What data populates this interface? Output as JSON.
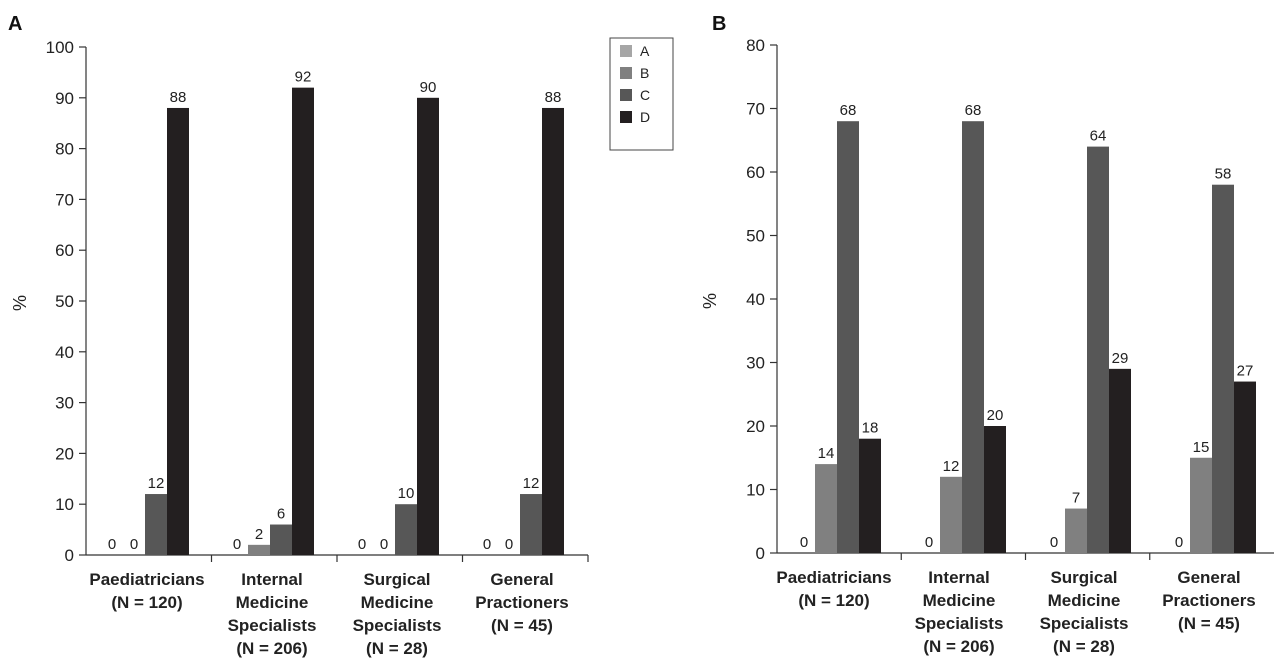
{
  "chart_data": [
    {
      "panel_label": "A",
      "type": "bar",
      "ylabel": "%",
      "ylim": [
        0,
        100
      ],
      "yticks": [
        0,
        10,
        20,
        30,
        40,
        50,
        60,
        70,
        80,
        90,
        100
      ],
      "categories": [
        [
          "Paediatricians",
          "(N = 120)"
        ],
        [
          "Internal",
          "Medicine",
          "Specialists",
          "(N = 206)"
        ],
        [
          "Surgical",
          "Medicine",
          "Specialists",
          "(N = 28)"
        ],
        [
          "General",
          "Practioners",
          "(N = 45)"
        ]
      ],
      "series": [
        {
          "name": "A",
          "color": "#a6a6a6",
          "values": [
            0,
            0,
            0,
            0
          ]
        },
        {
          "name": "B",
          "color": "#808080",
          "values": [
            0,
            2,
            0,
            0
          ]
        },
        {
          "name": "C",
          "color": "#575757",
          "values": [
            12,
            6,
            10,
            12
          ]
        },
        {
          "name": "D",
          "color": "#231f20",
          "values": [
            88,
            92,
            90,
            88
          ]
        }
      ],
      "legend": "top-right"
    },
    {
      "panel_label": "B",
      "type": "bar",
      "ylabel": "%",
      "ylim": [
        0,
        80
      ],
      "yticks": [
        0,
        10,
        20,
        30,
        40,
        50,
        60,
        70,
        80
      ],
      "categories": [
        [
          "Paediatricians",
          "(N = 120)"
        ],
        [
          "Internal",
          "Medicine",
          "Specialists",
          "(N = 206)"
        ],
        [
          "Surgical",
          "Medicine",
          "Specialists",
          "(N = 28)"
        ],
        [
          "General",
          "Practioners",
          "(N = 45)"
        ]
      ],
      "series": [
        {
          "name": "A",
          "color": "#a6a6a6",
          "values": [
            0,
            0,
            0,
            0
          ]
        },
        {
          "name": "B",
          "color": "#808080",
          "values": [
            14,
            12,
            7,
            15
          ]
        },
        {
          "name": "C",
          "color": "#575757",
          "values": [
            68,
            68,
            64,
            58
          ]
        },
        {
          "name": "D",
          "color": "#231f20",
          "values": [
            18,
            20,
            29,
            27
          ]
        }
      ]
    }
  ]
}
